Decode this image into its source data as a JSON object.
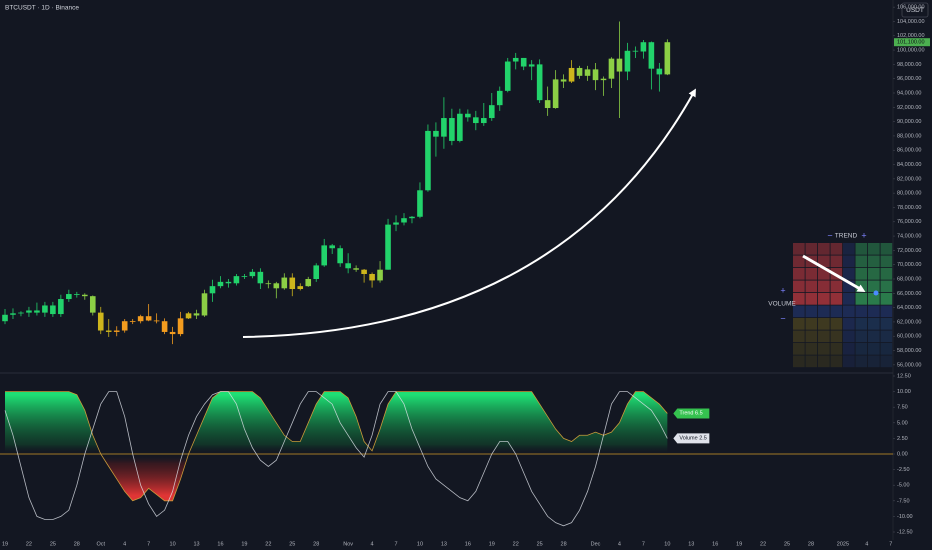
{
  "header": {
    "title": "BTCUSDT · 1D · Binance",
    "currency": "USDT"
  },
  "widget": {
    "x_label": "TREND",
    "y_label": "VOLUME",
    "plus": "+",
    "minus": "−"
  },
  "chart_data": [
    {
      "type": "candlestick",
      "palette": [
        "#ef4a2a",
        "#f39c1f",
        "#cdb51c",
        "#8ccf45",
        "#22d36b"
      ],
      "categories": [
        "19",
        null,
        null,
        "22",
        null,
        null,
        "25",
        null,
        null,
        "28",
        null,
        null,
        "Oct",
        null,
        null,
        "4",
        null,
        null,
        "7",
        null,
        null,
        "10",
        null,
        null,
        "13",
        null,
        null,
        "16",
        null,
        null,
        "19",
        null,
        null,
        "22",
        null,
        null,
        "25",
        null,
        null,
        "28",
        null,
        null,
        null,
        "Nov",
        null,
        null,
        "4",
        null,
        null,
        "7",
        null,
        null,
        "10",
        null,
        null,
        "13",
        null,
        null,
        "16",
        null,
        null,
        "19",
        null,
        null,
        "22",
        null,
        null,
        "25",
        null,
        null,
        "28",
        null,
        null,
        null,
        "Dec",
        null,
        null,
        "4",
        null,
        null,
        "7",
        null,
        null,
        "10",
        null,
        null,
        "13",
        null,
        null,
        "16",
        null,
        null,
        "19",
        null,
        null,
        "22",
        null,
        null,
        "25",
        null,
        null,
        "28",
        null,
        null,
        null,
        "2025",
        null,
        null,
        "4",
        null,
        null,
        "7"
      ],
      "ohlc": [
        [
          62100,
          63800,
          61700,
          63000
        ],
        [
          63000,
          63900,
          62400,
          63200
        ],
        [
          63200,
          63500,
          62800,
          63300
        ],
        [
          63300,
          64100,
          62700,
          63600
        ],
        [
          63600,
          64700,
          62900,
          63300
        ],
        [
          63300,
          64800,
          62700,
          64300
        ],
        [
          64300,
          64800,
          62700,
          63100
        ],
        [
          63100,
          65800,
          62700,
          65200
        ],
        [
          65200,
          66500,
          64800,
          65900
        ],
        [
          65900,
          66200,
          65400,
          65800
        ],
        [
          65800,
          66000,
          65100,
          65600
        ],
        [
          65600,
          65700,
          62900,
          63300
        ],
        [
          63300,
          64100,
          60300,
          60800
        ],
        [
          60800,
          62400,
          59900,
          60600
        ],
        [
          60600,
          61400,
          60000,
          60800
        ],
        [
          60800,
          62400,
          60500,
          62100
        ],
        [
          62100,
          62400,
          61700,
          62100
        ],
        [
          62100,
          63000,
          61800,
          62800
        ],
        [
          62800,
          64500,
          62100,
          62200
        ],
        [
          62200,
          63200,
          61800,
          62100
        ],
        [
          62100,
          62500,
          60300,
          60600
        ],
        [
          60600,
          61300,
          58900,
          60300
        ],
        [
          60300,
          63400,
          60000,
          62500
        ],
        [
          62500,
          63400,
          62400,
          63200
        ],
        [
          63200,
          63700,
          62400,
          62900
        ],
        [
          62900,
          66500,
          62700,
          66000
        ],
        [
          66000,
          67900,
          64800,
          67000
        ],
        [
          67000,
          68400,
          66700,
          67600
        ],
        [
          67600,
          68000,
          66800,
          67400
        ],
        [
          67400,
          68700,
          67100,
          68400
        ],
        [
          68400,
          68700,
          68000,
          68400
        ],
        [
          68400,
          69400,
          68100,
          69000
        ],
        [
          69000,
          69500,
          66600,
          67400
        ],
        [
          67400,
          67800,
          66700,
          67400
        ],
        [
          67400,
          67600,
          65300,
          66700
        ],
        [
          66700,
          68800,
          66500,
          68200
        ],
        [
          68200,
          68800,
          65600,
          66600
        ],
        [
          66600,
          67400,
          66400,
          67000
        ],
        [
          67000,
          68300,
          66900,
          68000
        ],
        [
          68000,
          70200,
          67600,
          69900
        ],
        [
          69900,
          73600,
          69700,
          72700
        ],
        [
          72700,
          72900,
          71500,
          72300
        ],
        [
          72300,
          72700,
          69700,
          70200
        ],
        [
          70200,
          71600,
          68800,
          69500
        ],
        [
          69500,
          69900,
          69000,
          69300
        ],
        [
          69300,
          69400,
          67500,
          68700
        ],
        [
          68700,
          68900,
          66800,
          67800
        ],
        [
          67800,
          70500,
          67500,
          69300
        ],
        [
          69300,
          76400,
          69300,
          75600
        ],
        [
          75600,
          76900,
          74700,
          75900
        ],
        [
          75900,
          77200,
          75500,
          76500
        ],
        [
          76500,
          76800,
          75800,
          76700
        ],
        [
          76700,
          81500,
          76500,
          80400
        ],
        [
          80400,
          89600,
          80200,
          88700
        ],
        [
          88700,
          89900,
          85100,
          87900
        ],
        [
          87900,
          93400,
          86200,
          90500
        ],
        [
          90500,
          91800,
          86700,
          87300
        ],
        [
          87300,
          91800,
          87100,
          91100
        ],
        [
          91100,
          91700,
          90000,
          90600
        ],
        [
          90600,
          91500,
          88800,
          89800
        ],
        [
          89800,
          92600,
          89400,
          90500
        ],
        [
          90500,
          94000,
          90100,
          92300
        ],
        [
          92300,
          94900,
          91500,
          94300
        ],
        [
          94300,
          98900,
          94100,
          98400
        ],
        [
          98400,
          99600,
          97300,
          98900
        ],
        [
          98900,
          98900,
          97200,
          97700
        ],
        [
          97700,
          98600,
          95800,
          98000
        ],
        [
          98000,
          98700,
          92600,
          93000
        ],
        [
          93000,
          94900,
          90800,
          91900
        ],
        [
          91900,
          97200,
          91800,
          95900
        ],
        [
          95900,
          96600,
          94700,
          95600
        ],
        [
          95600,
          98600,
          95400,
          97500
        ],
        [
          97500,
          97800,
          96000,
          96400
        ],
        [
          96400,
          97800,
          95700,
          97300
        ],
        [
          97300,
          98200,
          94400,
          95800
        ],
        [
          95800,
          96300,
          93600,
          96000
        ],
        [
          96000,
          99000,
          94700,
          98800
        ],
        [
          98800,
          104000,
          90500,
          97000
        ],
        [
          97000,
          101000,
          95800,
          99900
        ],
        [
          99900,
          100500,
          98900,
          99800
        ],
        [
          99800,
          101400,
          98800,
          101100
        ],
        [
          101100,
          101200,
          94500,
          97400
        ],
        [
          97400,
          98200,
          94200,
          96600
        ],
        [
          96600,
          101500,
          96500,
          101100
        ],
        null,
        null,
        null,
        null,
        null,
        null,
        null,
        null,
        null,
        null,
        null,
        null,
        null,
        null,
        null,
        null,
        null,
        null,
        null,
        null,
        null,
        null,
        null,
        null,
        null,
        null,
        null
      ],
      "last_price": {
        "value": 101100,
        "label": "101,100.00"
      },
      "ylim": [
        55000,
        107000
      ],
      "yticks": [
        {
          "value": 56000,
          "label": "56,000.00"
        },
        {
          "value": 58000,
          "label": "58,000.00"
        },
        {
          "value": 60000,
          "label": "60,000.00"
        },
        {
          "value": 62000,
          "label": "62,000.00"
        },
        {
          "value": 64000,
          "label": "64,000.00"
        },
        {
          "value": 66000,
          "label": "66,000.00"
        },
        {
          "value": 68000,
          "label": "68,000.00"
        },
        {
          "value": 70000,
          "label": "70,000.00"
        },
        {
          "value": 72000,
          "label": "72,000.00"
        },
        {
          "value": 74000,
          "label": "74,000.00"
        },
        {
          "value": 76000,
          "label": "76,000.00"
        },
        {
          "value": 78000,
          "label": "78,000.00"
        },
        {
          "value": 80000,
          "label": "80,000.00"
        },
        {
          "value": 82000,
          "label": "82,000.00"
        },
        {
          "value": 84000,
          "label": "84,000.00"
        },
        {
          "value": 86000,
          "label": "86,000.00"
        },
        {
          "value": 88000,
          "label": "88,000.00"
        },
        {
          "value": 90000,
          "label": "90,000.00"
        },
        {
          "value": 92000,
          "label": "92,000.00"
        },
        {
          "value": 94000,
          "label": "94,000.00"
        },
        {
          "value": 96000,
          "label": "96,000.00"
        },
        {
          "value": 98000,
          "label": "98,000.00"
        },
        {
          "value": 100000,
          "label": "100,000.00"
        },
        {
          "value": 102000,
          "label": "102,000.00"
        },
        {
          "value": 104000,
          "label": "104,000.00"
        },
        {
          "value": 106000,
          "label": "106,000.00"
        }
      ],
      "grid": false
    },
    {
      "type": "line",
      "series": [
        {
          "name": "Trend",
          "color": "#35c24f",
          "values": [
            10,
            10,
            10,
            10,
            10,
            10,
            10,
            10,
            10,
            9.5,
            7,
            3,
            0,
            -2,
            -4,
            -6,
            -7.5,
            -7,
            -5.5,
            -6.5,
            -7.5,
            -7.5,
            -4,
            0,
            3,
            6,
            9,
            10,
            10,
            10,
            10,
            10,
            9,
            7,
            5,
            3,
            2,
            2,
            5,
            8,
            10,
            10,
            10,
            9,
            6,
            2,
            0.5,
            4,
            8,
            10,
            10,
            10,
            10,
            10,
            10,
            10,
            10,
            10,
            10,
            10,
            10,
            10,
            10,
            10,
            10,
            10,
            10,
            8,
            6,
            4,
            2.5,
            2,
            3,
            3,
            3.5,
            3,
            3.5,
            5,
            8,
            10,
            10,
            9,
            8,
            6.5,
            null,
            null,
            null,
            null,
            null,
            null,
            null,
            null,
            null,
            null,
            null,
            null,
            null,
            null,
            null,
            null,
            null,
            null,
            null,
            null,
            null,
            null,
            null,
            null,
            null,
            null,
            null
          ]
        },
        {
          "name": "Volume",
          "color": "#e0e3eb",
          "values": [
            7,
            3,
            -2,
            -7,
            -10,
            -10.5,
            -10.5,
            -10,
            -9,
            -5,
            0,
            4,
            8,
            10,
            10,
            6,
            0,
            -5,
            -8,
            -10,
            -9,
            -6,
            -1,
            3,
            6,
            8,
            9.5,
            10,
            10,
            8,
            4,
            1,
            -1,
            -2,
            -1,
            2,
            5,
            8,
            10,
            10,
            9,
            8,
            5,
            3,
            1,
            -0.5,
            3,
            8,
            10,
            10,
            8,
            4,
            1,
            -2,
            -4,
            -5,
            -6,
            -7,
            -7.5,
            -6,
            -3,
            0,
            2,
            2,
            0,
            -3,
            -6,
            -8,
            -10,
            -11,
            -11.5,
            -11,
            -9,
            -6,
            -2,
            3,
            8,
            10,
            10,
            9,
            8,
            7,
            5,
            2.5,
            null,
            null,
            null,
            null,
            null,
            null,
            null,
            null,
            null,
            null,
            null,
            null,
            null,
            null,
            null,
            null,
            null,
            null,
            null,
            null,
            null,
            null,
            null,
            null,
            null,
            null,
            null
          ]
        }
      ],
      "ylim": [
        -12.5,
        12.5
      ],
      "yticks": [
        {
          "value": 12.5,
          "label": "12.50"
        },
        {
          "value": 10,
          "label": "10.00"
        },
        {
          "value": 7.5,
          "label": "7.50"
        },
        {
          "value": 5,
          "label": "5.00"
        },
        {
          "value": 2.5,
          "label": "2.50"
        },
        {
          "value": 0,
          "label": "0.00"
        },
        {
          "value": -2.5,
          "label": "-2.50"
        },
        {
          "value": -5,
          "label": "-5.00"
        },
        {
          "value": -7.5,
          "label": "-7.50"
        },
        {
          "value": -10,
          "label": "-10.00"
        },
        {
          "value": -12.5,
          "label": "-12.50"
        }
      ],
      "grid": false
    }
  ]
}
